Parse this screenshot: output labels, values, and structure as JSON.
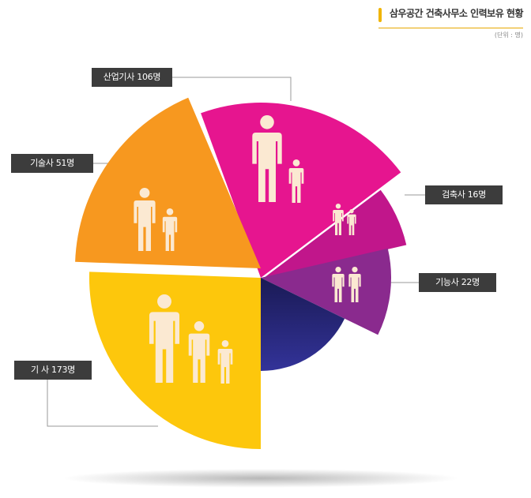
{
  "title": "삼우공간 건축사무소 인력보유 현황",
  "unit": "(단위 : 명)",
  "colors": {
    "accent": "#f0b400",
    "label_bg": "#3c3c3c",
    "person": "#fbe9d2"
  },
  "chart_data": {
    "type": "pie",
    "style": "exploded pie with varying slice radii and person icons",
    "labels": [
      "산업기사 106명",
      "검축사 16명",
      "기능사 22명",
      "기 사 173명",
      "기술사 51명"
    ],
    "slices": [
      {
        "name": "산업기사",
        "value": 106,
        "color": "#e6158f"
      },
      {
        "name": "검축사",
        "value": 16,
        "color": "#c1168b"
      },
      {
        "name": "기능사",
        "value": 22,
        "color": "#8a2a8e"
      },
      {
        "name": "",
        "value": null,
        "color": "#2b2a7e"
      },
      {
        "name": "기 사",
        "value": 173,
        "color": "#fdc70c"
      },
      {
        "name": "기술사",
        "value": 51,
        "color": "#f7981f"
      }
    ]
  }
}
